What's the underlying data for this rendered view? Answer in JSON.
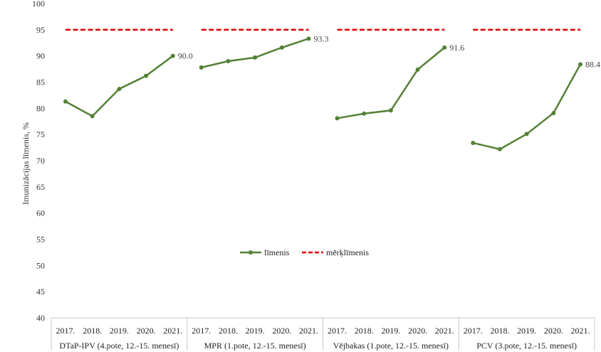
{
  "chart_data": {
    "type": "line",
    "ylabel": "Imunizācijas līmenis, %",
    "ylim": [
      40,
      100
    ],
    "yticks": [
      40,
      45,
      50,
      55,
      60,
      65,
      70,
      75,
      80,
      85,
      90,
      95,
      100
    ],
    "grid": false,
    "years": [
      "2017.",
      "2018.",
      "2019.",
      "2020.",
      "2021."
    ],
    "groups": [
      {
        "label": "DTaP-IPV (4.pote, 12.-15. menesī)",
        "values": [
          81.3,
          78.5,
          83.7,
          86.2,
          90.0
        ],
        "end_label": "90.0"
      },
      {
        "label": "MPR (1.pote, 12.-15. menesī)",
        "values": [
          87.8,
          89.0,
          89.7,
          91.6,
          93.3
        ],
        "end_label": "93.3"
      },
      {
        "label": "Vējbakas (1.pote, 12.-15. menesī)",
        "values": [
          78.1,
          79.0,
          79.6,
          87.4,
          91.6
        ],
        "end_label": "91.6"
      },
      {
        "label": "PCV (3.pote, 12.-15. menesī)",
        "values": [
          73.4,
          72.2,
          75.1,
          79.1,
          88.4
        ],
        "end_label": "88.4"
      }
    ],
    "target_value": 95,
    "series": [
      {
        "name": "līmenis",
        "color": "#538135",
        "style": "solid-marker"
      },
      {
        "name": "mērķlīmenis",
        "color": "#e00000",
        "style": "dashed"
      }
    ],
    "legend_position": "center"
  }
}
